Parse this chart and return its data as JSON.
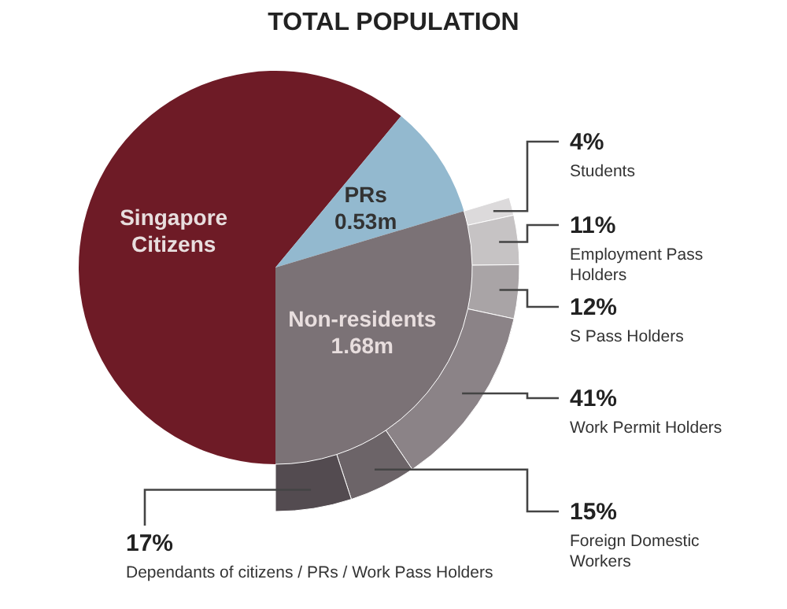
{
  "chart_data": [
    {
      "type": "pie",
      "title": "TOTAL POPULATION",
      "categories": [
        "Singapore Citizens",
        "PRs",
        "Non-residents"
      ],
      "values": [
        3.46,
        0.53,
        1.68
      ],
      "value_labels": [
        null,
        "0.53m",
        "1.68m"
      ],
      "colors": [
        "#6e1b26",
        "#93b9cf",
        "#7b7276"
      ]
    },
    {
      "type": "other",
      "categories": [
        "Students",
        "Employment Pass Holders",
        "S Pass Holders",
        "Work Permit Holders",
        "Foreign Domestic Workers",
        "Dependants of citizens / PRs / Work Pass Holders"
      ],
      "values": [
        4,
        11,
        12,
        41,
        15,
        17
      ],
      "value_labels": [
        "4%",
        "11%",
        "12%",
        "41%",
        "15%",
        "17%"
      ],
      "colors": [
        "#dcdadb",
        "#c6c3c4",
        "#a9a4a6",
        "#8b8387",
        "#6c6468",
        "#534b50"
      ]
    }
  ]
}
